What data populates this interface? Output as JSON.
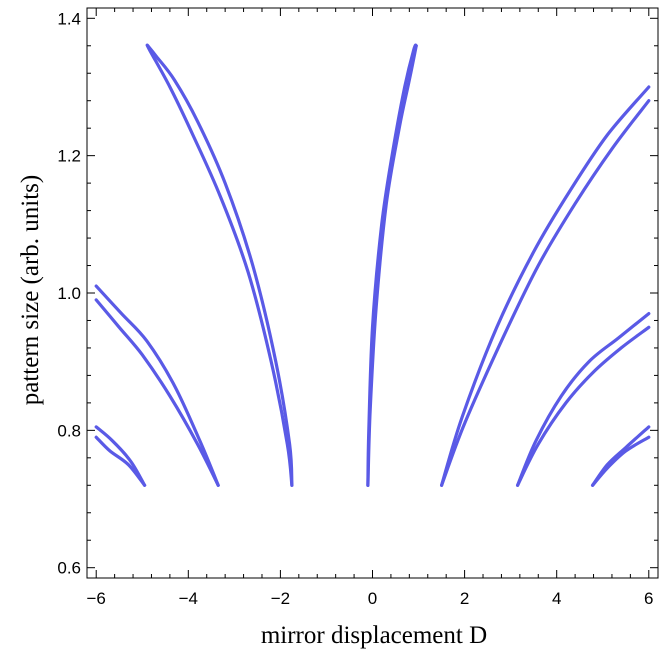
{
  "chart_data": {
    "type": "line",
    "title": "",
    "xlabel": "mirror displacement D",
    "ylabel": "pattern size (arb. units)",
    "xlim": [
      -6.2,
      6.2
    ],
    "ylim": [
      0.585,
      1.415
    ],
    "x_ticks": [
      -6,
      -4,
      -2,
      0,
      2,
      4,
      6
    ],
    "x_tick_labels": [
      "−6",
      "−4",
      "−2",
      "0",
      "2",
      "4",
      "6"
    ],
    "y_ticks": [
      0.6,
      0.8,
      1.0,
      1.2,
      1.4
    ],
    "y_tick_labels": [
      "0.6",
      "0.8",
      "1.0",
      "1.2",
      "1.4"
    ],
    "grid": false,
    "series_color": "#5a5ae6",
    "series": [
      {
        "x": [
          -1.75,
          -1.85,
          -2.2,
          -2.7,
          -3.3,
          -3.9,
          -4.4,
          -4.85,
          -4.88
        ],
        "y": [
          0.72,
          0.78,
          0.9,
          1.03,
          1.14,
          1.23,
          1.3,
          1.355,
          1.36
        ]
      },
      {
        "x": [
          -1.75,
          -1.8,
          -2.1,
          -2.6,
          -3.2,
          -3.8,
          -4.3,
          -4.7,
          -4.88
        ],
        "y": [
          0.72,
          0.78,
          0.9,
          1.04,
          1.16,
          1.25,
          1.31,
          1.345,
          1.36
        ]
      },
      {
        "x": [
          -0.1,
          -0.08,
          0.0,
          0.2,
          0.45,
          0.7,
          0.9,
          0.95
        ],
        "y": [
          0.72,
          0.8,
          0.95,
          1.1,
          1.21,
          1.3,
          1.355,
          1.36
        ]
      },
      {
        "x": [
          -0.1,
          -0.05,
          0.08,
          0.3,
          0.58,
          0.8,
          0.95
        ],
        "y": [
          0.72,
          0.83,
          0.98,
          1.13,
          1.24,
          1.31,
          1.36
        ]
      },
      {
        "x": [
          -3.35,
          -3.8,
          -4.4,
          -5.0,
          -5.5,
          -6.0
        ],
        "y": [
          0.72,
          0.78,
          0.85,
          0.91,
          0.95,
          0.99
        ]
      },
      {
        "x": [
          -3.35,
          -3.75,
          -4.3,
          -4.9,
          -5.45,
          -6.0
        ],
        "y": [
          0.72,
          0.785,
          0.865,
          0.93,
          0.97,
          1.01
        ]
      },
      {
        "x": [
          -4.95,
          -5.3,
          -5.7,
          -6.0
        ],
        "y": [
          0.72,
          0.75,
          0.77,
          0.79
        ]
      },
      {
        "x": [
          -4.95,
          -5.25,
          -5.65,
          -6.0
        ],
        "y": [
          0.72,
          0.755,
          0.785,
          0.805
        ]
      },
      {
        "x": [
          1.5,
          2.0,
          2.8,
          3.6,
          4.4,
          5.2,
          6.0
        ],
        "y": [
          0.72,
          0.81,
          0.93,
          1.04,
          1.13,
          1.21,
          1.28
        ]
      },
      {
        "x": [
          1.5,
          1.95,
          2.7,
          3.5,
          4.3,
          5.1,
          6.0
        ],
        "y": [
          0.72,
          0.82,
          0.95,
          1.06,
          1.15,
          1.23,
          1.3
        ]
      },
      {
        "x": [
          3.15,
          3.6,
          4.2,
          4.8,
          5.4,
          6.0
        ],
        "y": [
          0.72,
          0.78,
          0.84,
          0.885,
          0.92,
          0.95
        ]
      },
      {
        "x": [
          3.15,
          3.55,
          4.1,
          4.7,
          5.35,
          6.0
        ],
        "y": [
          0.72,
          0.785,
          0.85,
          0.9,
          0.935,
          0.97
        ]
      },
      {
        "x": [
          4.78,
          5.1,
          5.5,
          6.0
        ],
        "y": [
          0.72,
          0.745,
          0.77,
          0.79
        ]
      },
      {
        "x": [
          4.78,
          5.1,
          5.5,
          6.0
        ],
        "y": [
          0.72,
          0.75,
          0.775,
          0.805
        ]
      }
    ]
  }
}
